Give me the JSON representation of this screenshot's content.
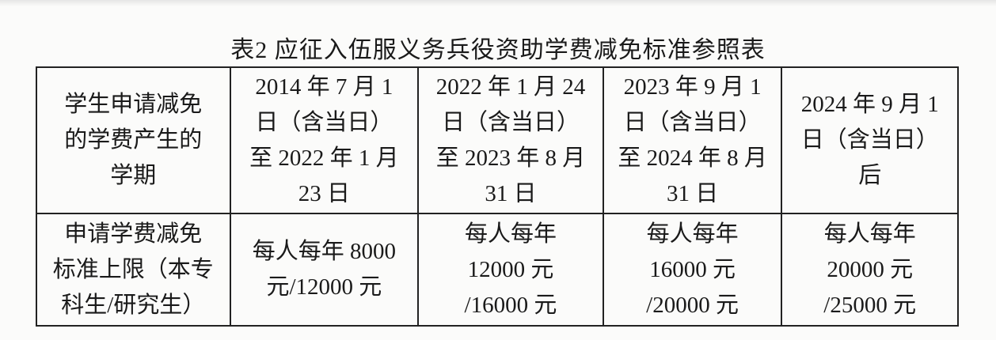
{
  "title": "表2 应征入伍服义务兵役资助学费减免标准参照表",
  "table": {
    "rows": [
      [
        [
          "学生申请减免",
          "的学费产生的",
          "学期"
        ],
        [
          "2014 年 7 月 1",
          "日（含当日）",
          "至 2022 年 1 月",
          "23 日"
        ],
        [
          "2022 年 1 月 24",
          "日（含当日）",
          "至 2023 年 8 月",
          "31 日"
        ],
        [
          "2023 年 9 月 1",
          "日（含当日）",
          "至 2024 年 8 月",
          "31 日"
        ],
        [
          "2024 年 9 月 1",
          "日（含当日）",
          "后"
        ]
      ],
      [
        [
          "申请学费减免",
          "标准上限（本专",
          "科生/研究生）"
        ],
        [
          "每人每年 8000",
          "元/12000 元"
        ],
        [
          "每人每年",
          "12000 元",
          "/16000 元"
        ],
        [
          "每人每年",
          "16000 元",
          "/20000 元"
        ],
        [
          "每人每年",
          "20000 元",
          "/25000 元"
        ]
      ]
    ]
  }
}
